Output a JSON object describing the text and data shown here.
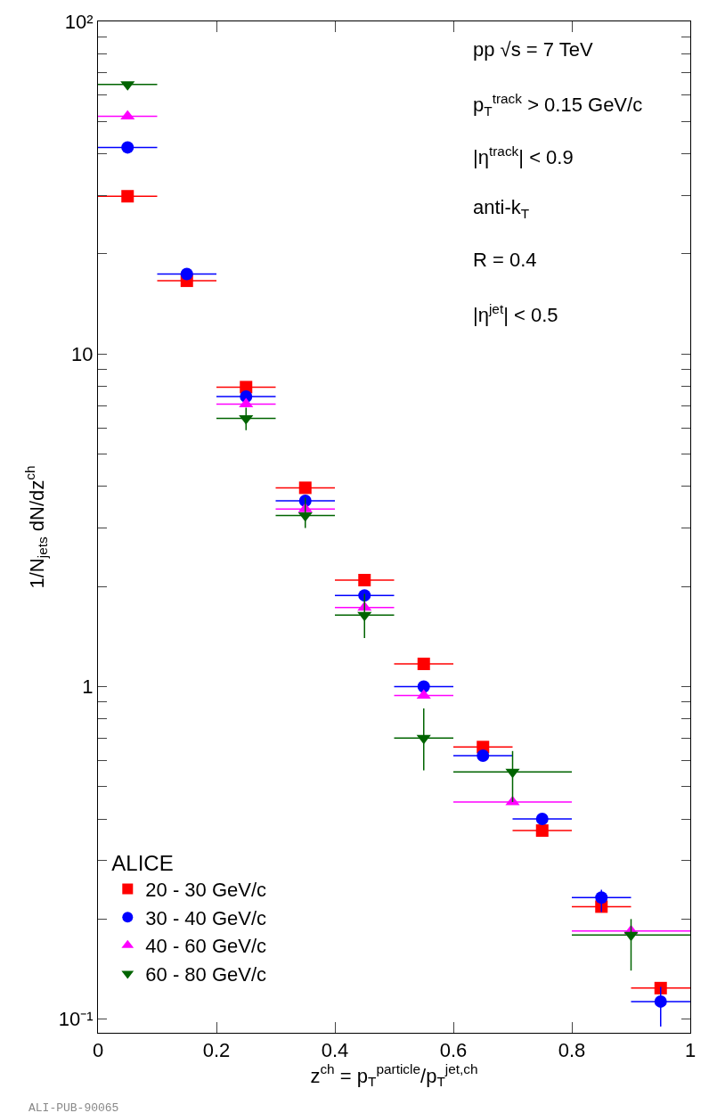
{
  "chart_data": {
    "type": "scatter",
    "xlabel": "z$^{ch}$ = p$_{T}$$^{particle}$/p$_{T}$$^{jet,ch}$",
    "ylabel": "1/N$_{jets}$ dN/dz$^{ch}$",
    "legend_title": "ALICE",
    "legend": "bottom left",
    "log": "y",
    "grid": false,
    "xlim": [
      0,
      1
    ],
    "xticks": [
      0,
      0.2,
      0.4,
      0.6,
      0.8,
      1
    ],
    "ylim": [
      0.091,
      100
    ],
    "yticks": [
      {
        "value": 0.1,
        "label": "10⁻¹"
      },
      {
        "value": 0.2,
        "label": null
      },
      {
        "value": 0.3,
        "label": null
      },
      {
        "value": 0.4,
        "label": null
      },
      {
        "value": 0.5,
        "label": null
      },
      {
        "value": 0.6,
        "label": null
      },
      {
        "value": 0.7,
        "label": null
      },
      {
        "value": 0.8,
        "label": null
      },
      {
        "value": 0.9,
        "label": null
      },
      1,
      {
        "value": 2,
        "label": null
      },
      {
        "value": 3,
        "label": null
      },
      {
        "value": 4,
        "label": null
      },
      {
        "value": 5,
        "label": null
      },
      {
        "value": 6,
        "label": null
      },
      {
        "value": 7,
        "label": null
      },
      {
        "value": 8,
        "label": null
      },
      {
        "value": 9,
        "label": null
      },
      10,
      {
        "value": 20,
        "label": null
      },
      {
        "value": 30,
        "label": null
      },
      {
        "value": 40,
        "label": null
      },
      {
        "value": 50,
        "label": null
      },
      {
        "value": 60,
        "label": null
      },
      {
        "value": 70,
        "label": null
      },
      {
        "value": 80,
        "label": null
      },
      {
        "value": 90,
        "label": null
      },
      {
        "value": 100,
        "label": "10²"
      }
    ],
    "annotations": [
      "pp √s = 7 TeV",
      "p$_{T}$$^{track}$ > 0.15 GeV/c",
      "|η$^{track}$| < 0.9",
      "anti-k$_{T}$",
      "R = 0.4",
      "|η$^{jet}$| < 0.5",
      "ALI-PUB-90065"
    ],
    "series": [
      {
        "name": "20 - 30 GeV/c",
        "color": "#ff0000",
        "marker": "square",
        "x": [
          0.05,
          0.15,
          0.25,
          0.35,
          0.45,
          0.55,
          0.65,
          0.75,
          0.85,
          0.95
        ],
        "values": [
          29.8,
          16.6,
          7.95,
          3.96,
          2.09,
          1.17,
          0.658,
          0.369,
          0.218,
          0.124
        ],
        "xerrors": [
          0.05,
          0.05,
          0.05,
          0.05,
          0.05,
          0.05,
          0.05,
          0.05,
          0.05,
          0.05
        ]
      },
      {
        "name": "30 - 40 GeV/c",
        "color": "#0000ff",
        "marker": "circle",
        "x": [
          0.05,
          0.15,
          0.25,
          0.35,
          0.45,
          0.55,
          0.65,
          0.75,
          0.85,
          0.95
        ],
        "values": [
          41.8,
          17.4,
          7.45,
          3.62,
          1.88,
          1.0,
          0.62,
          0.4,
          0.232,
          0.113
        ],
        "xerrors": [
          0.05,
          0.05,
          0.05,
          0.05,
          0.05,
          0.05,
          0.05,
          0.05,
          0.05,
          0.05
        ],
        "errors": [
          null,
          null,
          null,
          null,
          null,
          null,
          null,
          null,
          [
            0.21,
            0.245
          ],
          [
            0.095,
            0.125
          ]
        ]
      },
      {
        "name": "40 - 60 GeV/c",
        "color": "#ff00ff",
        "marker": "triangle",
        "x": [
          0.05,
          0.15,
          0.25,
          0.35,
          0.45,
          0.55,
          0.7,
          0.9
        ],
        "values": [
          51.8,
          null,
          7.07,
          3.42,
          1.73,
          0.94,
          0.45,
          0.184
        ],
        "xerrors": [
          0.05,
          null,
          0.05,
          0.05,
          0.05,
          0.05,
          0.1,
          0.1
        ]
      },
      {
        "name": "60 - 80 GeV/c",
        "color": "#006400",
        "marker": "triangle-down",
        "x": [
          0.05,
          0.15,
          0.25,
          0.35,
          0.45,
          0.55,
          0.7,
          0.9
        ],
        "values": [
          64.6,
          null,
          6.4,
          3.27,
          1.64,
          0.7,
          0.554,
          0.179
        ],
        "xerrors": [
          0.05,
          null,
          0.05,
          0.05,
          0.05,
          0.05,
          0.1,
          0.1
        ],
        "errors": [
          null,
          null,
          [
            5.9,
            6.9
          ],
          [
            3.0,
            3.7
          ],
          [
            1.4,
            1.9
          ],
          [
            0.56,
            0.86
          ],
          [
            0.45,
            0.64
          ],
          [
            0.14,
            0.2
          ]
        ]
      }
    ]
  }
}
